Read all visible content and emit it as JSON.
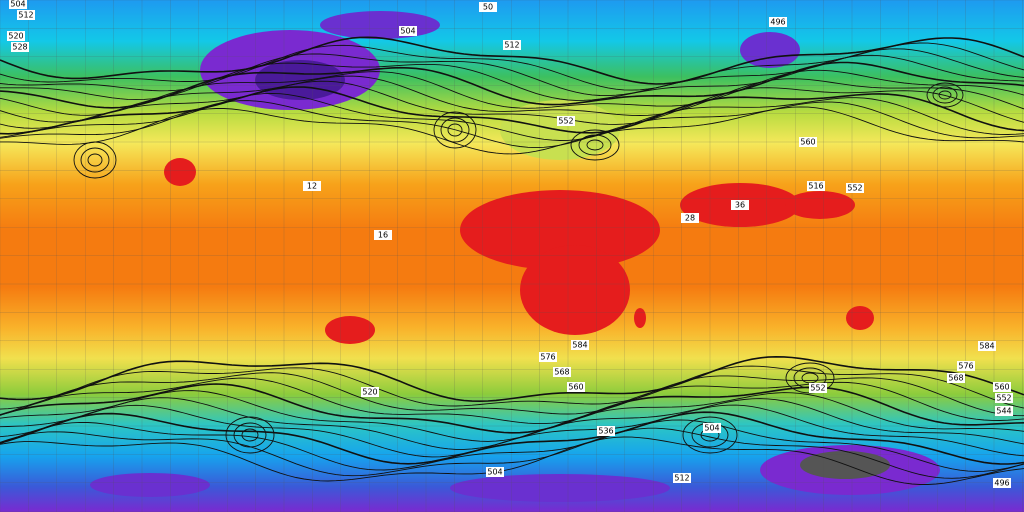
{
  "map": {
    "contour_labels": [
      "504",
      "512",
      "520",
      "528",
      "50",
      "504",
      "512",
      "496",
      "552",
      "560",
      "516",
      "552",
      "584",
      "576",
      "568",
      "560",
      "552",
      "584",
      "576",
      "568",
      "560",
      "552",
      "544",
      "504",
      "512",
      "496",
      "520",
      "536",
      "504",
      "12",
      "16",
      "28",
      "36"
    ]
  }
}
